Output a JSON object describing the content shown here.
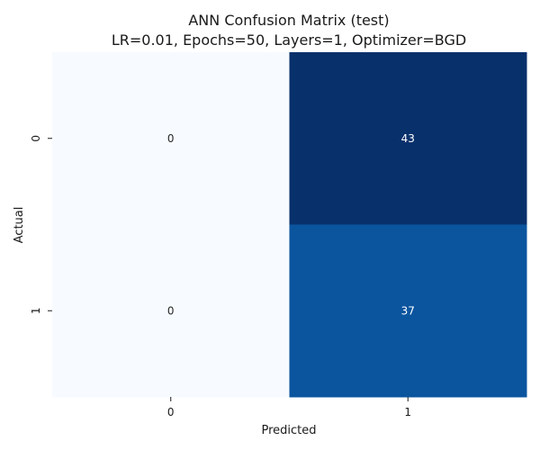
{
  "chart_data": {
    "type": "heatmap",
    "title_line1": "ANN Confusion Matrix (test)",
    "title_line2": "LR=0.01, Epochs=50, Layers=1, Optimizer=BGD",
    "xlabel": "Predicted",
    "ylabel": "Actual",
    "x_categories": [
      "0",
      "1"
    ],
    "y_categories": [
      "0",
      "1"
    ],
    "values": [
      [
        0,
        43
      ],
      [
        0,
        37
      ]
    ],
    "colormap": "Blues",
    "colorbar": false
  }
}
